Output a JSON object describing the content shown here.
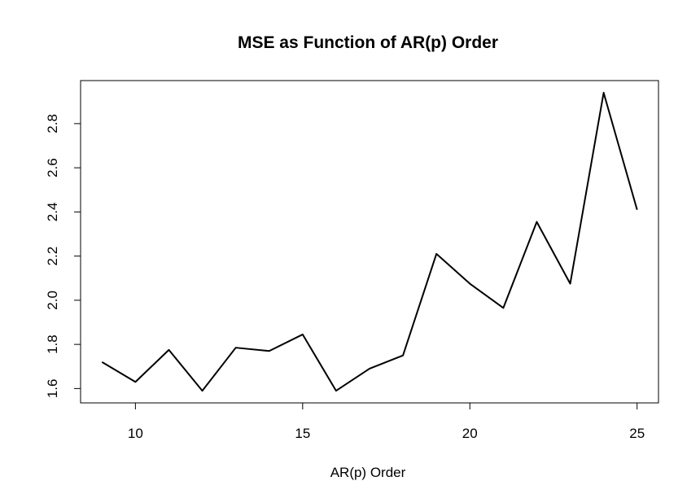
{
  "chart_data": {
    "type": "line",
    "title": "MSE as Function of AR(p) Order",
    "xlabel": "AR(p) Order",
    "ylabel": "",
    "x": [
      9,
      10,
      11,
      12,
      13,
      14,
      15,
      16,
      17,
      18,
      19,
      20,
      21,
      22,
      23,
      24,
      25
    ],
    "series": [
      {
        "values": [
          1.72,
          1.63,
          1.775,
          1.59,
          1.785,
          1.77,
          1.845,
          1.59,
          1.69,
          1.75,
          2.21,
          2.075,
          1.965,
          2.355,
          2.075,
          2.94,
          2.41
        ],
        "color": "#000000"
      }
    ],
    "xticks": [
      "10",
      "15",
      "20",
      "25"
    ],
    "yticks": [
      "1.6",
      "1.8",
      "2.0",
      "2.2",
      "2.4",
      "2.6",
      "2.8"
    ],
    "xlim": [
      8.36,
      25.64
    ],
    "ylim": [
      1.535,
      2.995
    ],
    "grid": false,
    "legend": "none"
  }
}
